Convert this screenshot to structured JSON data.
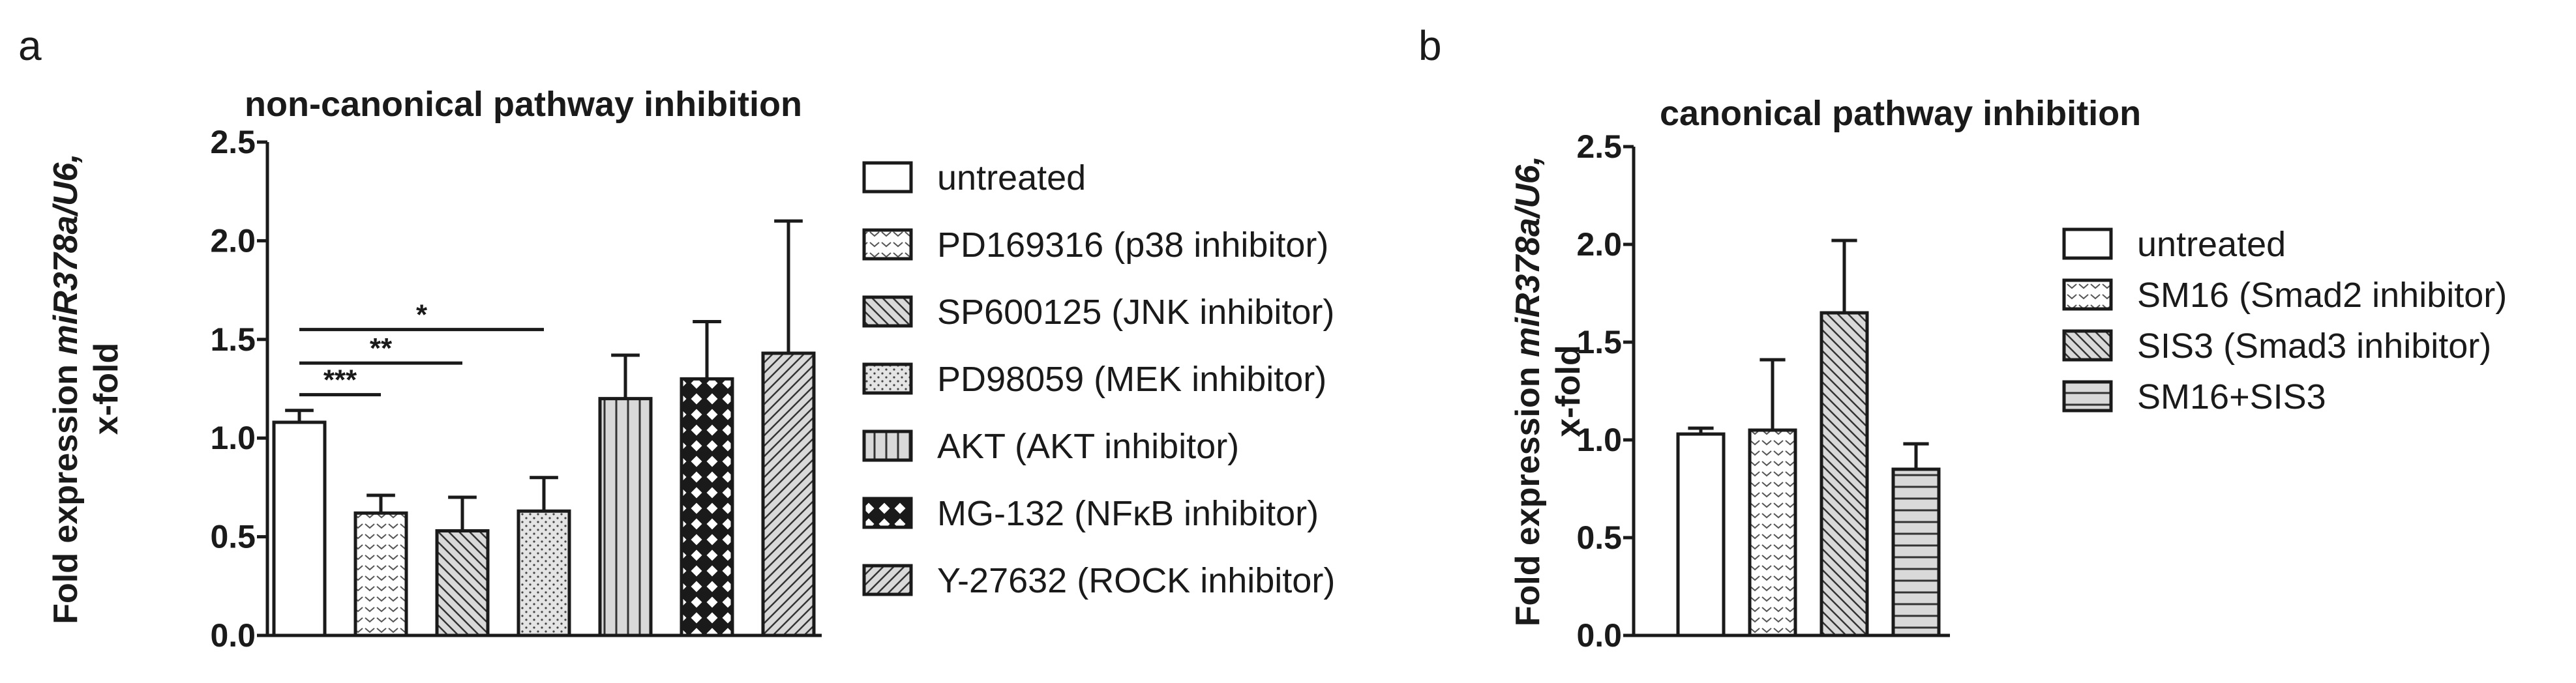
{
  "colors": {
    "ink": "#1a1a1a",
    "bar_fill": "#ffffff",
    "pattern_fill": "#d9d9d9"
  },
  "panels": [
    {
      "label": "a",
      "title": "non-canonical pathway inhibition",
      "ylabel_line1_plain": "Fold expression ",
      "ylabel_line1_italic": "miR378a/U6,",
      "ylabel_line2": "x-fold"
    },
    {
      "label": "b",
      "title": "canonical pathway inhibition",
      "ylabel_line1_plain": "Fold expression ",
      "ylabel_line1_italic": "miR378a/U6,",
      "ylabel_line2": "x-fold"
    }
  ],
  "chart_data": [
    {
      "type": "bar",
      "title": "non-canonical pathway inhibition",
      "ylabel": "Fold expression miR378a/U6, x-fold",
      "xlabel": "",
      "ylim": [
        0,
        2.5
      ],
      "yticks": [
        "0.0",
        "0.5",
        "1.0",
        "1.5",
        "2.0",
        "2.5"
      ],
      "grid": false,
      "legend_position": "right",
      "series": [
        {
          "name": "untreated",
          "value": 1.08,
          "error": 0.06,
          "pattern": "none"
        },
        {
          "name": "PD169316 (p38 inhibitor)",
          "value": 0.62,
          "error": 0.09,
          "pattern": "chevron"
        },
        {
          "name": "SP600125 (JNK inhibitor)",
          "value": 0.53,
          "error": 0.17,
          "pattern": "diag-back"
        },
        {
          "name": "PD98059 (MEK inhibitor)",
          "value": 0.63,
          "error": 0.17,
          "pattern": "dots"
        },
        {
          "name": "AKT (AKT inhibitor)",
          "value": 1.2,
          "error": 0.22,
          "pattern": "vlines"
        },
        {
          "name": "MG-132 (NFκB inhibitor)",
          "value": 1.3,
          "error": 0.29,
          "pattern": "checker"
        },
        {
          "name": "Y-27632 (ROCK inhibitor)",
          "value": 1.43,
          "error": 0.67,
          "pattern": "diag-fwd"
        }
      ],
      "annotations": [
        {
          "text": "***",
          "from": 0,
          "to": 1,
          "level": 1.22
        },
        {
          "text": "**",
          "from": 0,
          "to": 2,
          "level": 1.38
        },
        {
          "text": "*",
          "from": 0,
          "to": 3,
          "level": 1.55
        }
      ]
    },
    {
      "type": "bar",
      "title": "canonical pathway inhibition",
      "ylabel": "Fold expression miR378a/U6, x-fold",
      "xlabel": "",
      "ylim": [
        0,
        2.5
      ],
      "yticks": [
        "0.0",
        "0.5",
        "1.0",
        "1.5",
        "2.0",
        "2.5"
      ],
      "grid": false,
      "legend_position": "right",
      "series": [
        {
          "name": "untreated",
          "value": 1.03,
          "error": 0.03,
          "pattern": "none"
        },
        {
          "name": "SM16 (Smad2 inhibitor)",
          "value": 1.05,
          "error": 0.36,
          "pattern": "chevron"
        },
        {
          "name": "SIS3 (Smad3 inhibitor)",
          "value": 1.65,
          "error": 0.37,
          "pattern": "diag-back"
        },
        {
          "name": "SM16+SIS3",
          "value": 0.85,
          "error": 0.13,
          "pattern": "hlines"
        }
      ],
      "annotations": []
    }
  ]
}
